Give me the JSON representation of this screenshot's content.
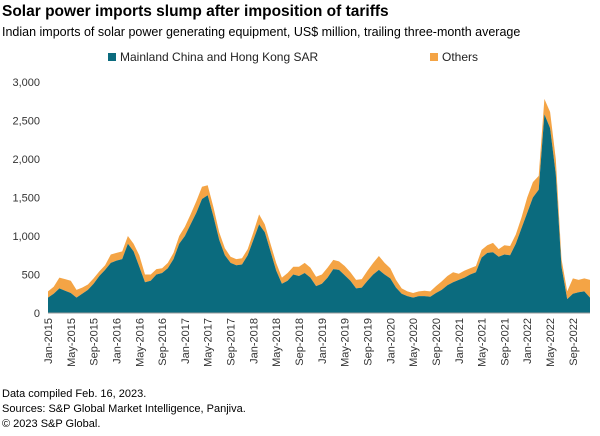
{
  "chart_data": {
    "type": "stacked_area",
    "title": "Solar power imports slump after imposition of tariffs",
    "subtitle": "Indian imports of solar power generating equipment, US$ million, trailing three-month average",
    "categories": [
      "Jan-2015",
      null,
      null,
      null,
      "May-2015",
      null,
      null,
      null,
      "Sep-2015",
      null,
      null,
      null,
      "Jan-2016",
      null,
      null,
      null,
      "May-2016",
      null,
      null,
      null,
      "Sep-2016",
      null,
      null,
      null,
      "Jan-2017",
      null,
      null,
      null,
      "May-2017",
      null,
      null,
      null,
      "Sep-2017",
      null,
      null,
      null,
      "Jan-2018",
      null,
      null,
      null,
      "May-2018",
      null,
      null,
      null,
      "Sep-2018",
      null,
      null,
      null,
      "Jan-2019",
      null,
      null,
      null,
      "May-2019",
      null,
      null,
      null,
      "Sep-2019",
      null,
      null,
      null,
      "Jan-2020",
      null,
      null,
      null,
      "May-2020",
      null,
      null,
      null,
      "Sep-2020",
      null,
      null,
      null,
      "Jan-2021",
      null,
      null,
      null,
      "May-2021",
      null,
      null,
      null,
      "Sep-2021",
      null,
      null,
      null,
      "Jan-2022",
      null,
      null,
      null,
      "May-2022",
      null,
      null,
      null,
      "Sep-2022",
      null,
      null,
      null
    ],
    "series": [
      {
        "name": "Mainland China and Hong Kong SAR",
        "color": "#0b6b7e",
        "values": [
          200,
          250,
          320,
          290,
          260,
          200,
          250,
          300,
          380,
          480,
          560,
          650,
          680,
          700,
          900,
          800,
          600,
          400,
          420,
          500,
          520,
          580,
          700,
          900,
          1000,
          1150,
          1300,
          1480,
          1530,
          1250,
          950,
          750,
          650,
          620,
          630,
          750,
          950,
          1150,
          1050,
          800,
          550,
          380,
          420,
          500,
          480,
          520,
          460,
          350,
          380,
          460,
          570,
          560,
          490,
          420,
          320,
          330,
          420,
          500,
          560,
          500,
          450,
          330,
          250,
          220,
          200,
          220,
          220,
          210,
          260,
          300,
          360,
          400,
          430,
          460,
          500,
          530,
          720,
          780,
          790,
          730,
          760,
          750,
          900,
          1100,
          1300,
          1500,
          1600,
          2580,
          2400,
          1800,
          600,
          180,
          250,
          270,
          280,
          200
        ]
      },
      {
        "name": "Others",
        "color": "#f4a445",
        "values": [
          80,
          90,
          140,
          150,
          160,
          100,
          80,
          70,
          70,
          60,
          60,
          110,
          100,
          100,
          100,
          100,
          150,
          100,
          80,
          70,
          60,
          70,
          80,
          100,
          120,
          130,
          150,
          160,
          130,
          120,
          100,
          90,
          80,
          80,
          80,
          80,
          100,
          130,
          100,
          100,
          100,
          80,
          100,
          100,
          120,
          130,
          130,
          120,
          120,
          130,
          120,
          110,
          120,
          110,
          110,
          110,
          130,
          150,
          180,
          150,
          130,
          100,
          70,
          60,
          60,
          60,
          70,
          70,
          90,
          110,
          120,
          130,
          80,
          90,
          80,
          80,
          100,
          100,
          120,
          100,
          120,
          120,
          120,
          140,
          200,
          200,
          180,
          200,
          210,
          200,
          100,
          100,
          200,
          160,
          170,
          230
        ]
      }
    ],
    "ylim": [
      0,
      3000
    ],
    "yticks": [
      0,
      500,
      {
        "value": 1000,
        "label": "1,000"
      },
      {
        "value": 1500,
        "label": "1,500"
      },
      {
        "value": 2000,
        "label": "2,000"
      },
      {
        "value": 2500,
        "label": "2,500"
      },
      {
        "value": 3000,
        "label": "3,000"
      }
    ],
    "legend": "top",
    "notes": [
      "Data compiled Feb. 16, 2023.",
      "Sources: S&P Global Market Intelligence,  Panjiva.",
      "© 2023 S&P Global."
    ]
  }
}
